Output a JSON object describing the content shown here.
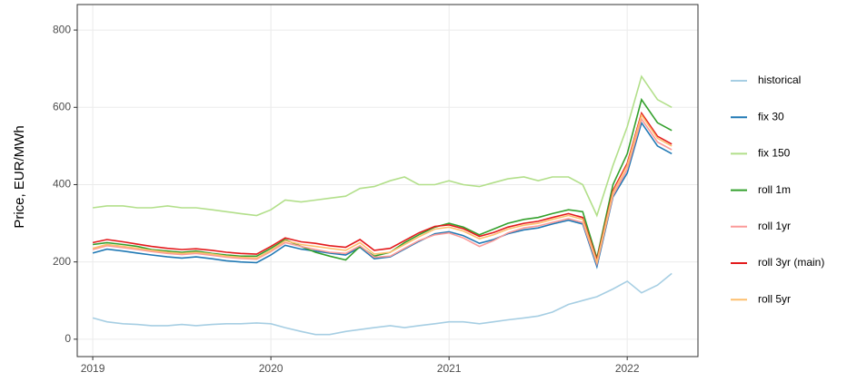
{
  "chart_data": {
    "type": "line",
    "y_label": "Price, EUR/MWh",
    "x": [
      2019,
      2019.08,
      2019.17,
      2019.25,
      2019.33,
      2019.42,
      2019.5,
      2019.58,
      2019.67,
      2019.75,
      2019.83,
      2019.92,
      2020,
      2020.08,
      2020.17,
      2020.25,
      2020.33,
      2020.42,
      2020.5,
      2020.58,
      2020.67,
      2020.75,
      2020.83,
      2020.92,
      2021,
      2021.08,
      2021.17,
      2021.25,
      2021.33,
      2021.42,
      2021.5,
      2021.58,
      2021.67,
      2021.75,
      2021.83,
      2021.92,
      2022,
      2022.08,
      2022.17,
      2022.25
    ],
    "series": [
      {
        "name": "historical",
        "color": "#a6cee3",
        "values": [
          55,
          45,
          40,
          38,
          35,
          35,
          38,
          35,
          38,
          40,
          40,
          42,
          40,
          30,
          20,
          12,
          12,
          20,
          25,
          30,
          35,
          30,
          35,
          40,
          45,
          45,
          40,
          45,
          50,
          55,
          60,
          70,
          90,
          100,
          110,
          130,
          150,
          120,
          140,
          170
        ]
      },
      {
        "name": "fix 30",
        "color": "#1f78b4",
        "values": [
          223,
          233,
          228,
          223,
          218,
          213,
          210,
          213,
          208,
          203,
          200,
          198,
          218,
          243,
          233,
          228,
          223,
          218,
          238,
          208,
          213,
          233,
          253,
          273,
          278,
          268,
          248,
          258,
          273,
          283,
          288,
          298,
          308,
          298,
          188,
          368,
          430,
          560,
          500,
          480
        ]
      },
      {
        "name": "fix 150",
        "color": "#b2df8a",
        "values": [
          340,
          345,
          345,
          340,
          340,
          345,
          340,
          340,
          335,
          330,
          325,
          320,
          335,
          360,
          355,
          360,
          365,
          370,
          390,
          395,
          410,
          420,
          400,
          400,
          410,
          400,
          395,
          405,
          415,
          420,
          410,
          420,
          420,
          400,
          320,
          450,
          550,
          680,
          620,
          600
        ]
      },
      {
        "name": "roll 1m",
        "color": "#33a02c",
        "values": [
          245,
          250,
          245,
          240,
          232,
          228,
          225,
          228,
          222,
          218,
          215,
          215,
          235,
          258,
          240,
          225,
          215,
          205,
          240,
          215,
          225,
          250,
          270,
          290,
          300,
          290,
          270,
          285,
          300,
          310,
          315,
          325,
          335,
          330,
          210,
          400,
          480,
          620,
          560,
          540
        ]
      },
      {
        "name": "roll 1yr",
        "color": "#fb9a99",
        "values": [
          232,
          242,
          237,
          232,
          227,
          222,
          219,
          222,
          217,
          212,
          209,
          207,
          227,
          250,
          240,
          232,
          225,
          222,
          242,
          212,
          215,
          235,
          255,
          270,
          275,
          262,
          240,
          255,
          275,
          288,
          293,
          302,
          312,
          302,
          195,
          372,
          440,
          570,
          510,
          490
        ]
      },
      {
        "name": "roll 3yr (main)",
        "color": "#e31a1c",
        "values": [
          250,
          258,
          252,
          246,
          240,
          235,
          232,
          234,
          230,
          225,
          222,
          220,
          240,
          262,
          252,
          248,
          242,
          238,
          258,
          230,
          235,
          255,
          275,
          292,
          296,
          286,
          266,
          276,
          290,
          300,
          305,
          315,
          325,
          315,
          205,
          385,
          455,
          585,
          525,
          505
        ]
      },
      {
        "name": "roll 5yr",
        "color": "#fdbf6f",
        "values": [
          235,
          245,
          240,
          235,
          230,
          225,
          222,
          225,
          220,
          215,
          212,
          210,
          230,
          255,
          245,
          240,
          235,
          230,
          250,
          220,
          225,
          245,
          265,
          285,
          290,
          280,
          260,
          270,
          285,
          295,
          300,
          310,
          320,
          310,
          200,
          380,
          450,
          580,
          520,
          500
        ]
      }
    ],
    "xlim": [
      2018.913,
      2022.397
    ],
    "xticks": [
      2019,
      2020,
      2021,
      2022
    ],
    "ylim": [
      -45,
      866
    ],
    "yticks": [
      0,
      200,
      400,
      600,
      800
    ],
    "grid": true,
    "legend": "right"
  }
}
